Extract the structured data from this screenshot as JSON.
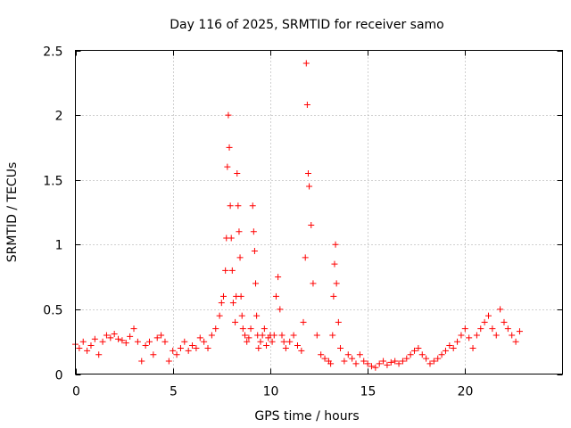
{
  "chart_data": {
    "type": "scatter",
    "title": "Day 116 of 2025, SRMTID for receiver samo",
    "xlabel": "GPS time / hours",
    "ylabel": "SRMTID / TECUs",
    "xlim": [
      0,
      25
    ],
    "ylim": [
      0,
      2.5
    ],
    "xticks": [
      "0",
      "5",
      "10",
      "15",
      "20"
    ],
    "xtick_values": [
      0,
      5,
      10,
      15,
      20
    ],
    "yticks": [
      "0",
      "0.5",
      "1",
      "1.5",
      "2",
      "2.5"
    ],
    "ytick_values": [
      0,
      0.5,
      1,
      1.5,
      2,
      2.5
    ],
    "grid": true,
    "marker": "+",
    "color": "#ff0000",
    "series": [
      {
        "name": "SRMTID",
        "x": [
          0.0,
          0.2,
          0.4,
          0.6,
          0.8,
          1.0,
          1.2,
          1.4,
          1.6,
          1.8,
          2.0,
          2.2,
          2.4,
          2.6,
          2.8,
          3.0,
          3.2,
          3.4,
          3.6,
          3.8,
          4.0,
          4.2,
          4.4,
          4.6,
          4.8,
          5.0,
          5.2,
          5.4,
          5.6,
          5.8,
          6.0,
          6.2,
          6.4,
          6.6,
          6.8,
          7.0,
          7.2,
          7.4,
          7.5,
          7.6,
          7.7,
          7.75,
          7.8,
          7.85,
          7.9,
          7.95,
          8.0,
          8.05,
          8.1,
          8.2,
          8.25,
          8.3,
          8.35,
          8.4,
          8.45,
          8.5,
          8.55,
          8.6,
          8.7,
          8.8,
          8.9,
          9.0,
          9.1,
          9.15,
          9.2,
          9.25,
          9.3,
          9.35,
          9.4,
          9.5,
          9.6,
          9.7,
          9.8,
          9.9,
          10.0,
          10.1,
          10.2,
          10.3,
          10.4,
          10.5,
          10.6,
          10.7,
          10.8,
          11.0,
          11.2,
          11.4,
          11.6,
          11.7,
          11.8,
          11.85,
          11.9,
          11.95,
          12.0,
          12.1,
          12.2,
          12.4,
          12.6,
          12.8,
          13.0,
          13.1,
          13.2,
          13.25,
          13.3,
          13.35,
          13.4,
          13.5,
          13.6,
          13.8,
          14.0,
          14.2,
          14.4,
          14.6,
          14.8,
          15.0,
          15.2,
          15.4,
          15.6,
          15.8,
          16.0,
          16.2,
          16.4,
          16.6,
          16.8,
          17.0,
          17.2,
          17.4,
          17.6,
          17.8,
          18.0,
          18.2,
          18.4,
          18.6,
          18.8,
          19.0,
          19.2,
          19.4,
          19.6,
          19.8,
          20.0,
          20.2,
          20.4,
          20.6,
          20.8,
          21.0,
          21.2,
          21.4,
          21.6,
          21.8,
          22.0,
          22.2,
          22.4,
          22.6,
          22.8
        ],
        "y": [
          0.23,
          0.2,
          0.25,
          0.18,
          0.22,
          0.27,
          0.15,
          0.25,
          0.3,
          0.28,
          0.31,
          0.27,
          0.26,
          0.24,
          0.29,
          0.35,
          0.25,
          0.1,
          0.22,
          0.25,
          0.15,
          0.28,
          0.3,
          0.25,
          0.1,
          0.18,
          0.15,
          0.2,
          0.25,
          0.18,
          0.22,
          0.2,
          0.28,
          0.25,
          0.2,
          0.3,
          0.35,
          0.45,
          0.55,
          0.6,
          0.8,
          1.05,
          1.6,
          2.0,
          1.75,
          1.3,
          1.05,
          0.8,
          0.55,
          0.4,
          0.6,
          1.55,
          1.3,
          1.1,
          0.9,
          0.6,
          0.45,
          0.35,
          0.3,
          0.25,
          0.28,
          0.35,
          1.3,
          1.1,
          0.95,
          0.7,
          0.45,
          0.3,
          0.2,
          0.25,
          0.3,
          0.35,
          0.22,
          0.28,
          0.3,
          0.25,
          0.3,
          0.6,
          0.75,
          0.5,
          0.3,
          0.25,
          0.2,
          0.25,
          0.3,
          0.22,
          0.18,
          0.4,
          0.9,
          2.4,
          2.08,
          1.55,
          1.45,
          1.15,
          0.7,
          0.3,
          0.15,
          0.12,
          0.1,
          0.08,
          0.3,
          0.6,
          0.85,
          1.0,
          0.7,
          0.4,
          0.2,
          0.1,
          0.15,
          0.12,
          0.08,
          0.15,
          0.1,
          0.08,
          0.06,
          0.05,
          0.08,
          0.1,
          0.07,
          0.09,
          0.1,
          0.08,
          0.1,
          0.12,
          0.15,
          0.18,
          0.2,
          0.15,
          0.12,
          0.08,
          0.1,
          0.12,
          0.15,
          0.18,
          0.22,
          0.2,
          0.25,
          0.3,
          0.35,
          0.28,
          0.2,
          0.3,
          0.35,
          0.4,
          0.45,
          0.35,
          0.3,
          0.5,
          0.4,
          0.35,
          0.3,
          0.25,
          0.33
        ]
      }
    ]
  }
}
